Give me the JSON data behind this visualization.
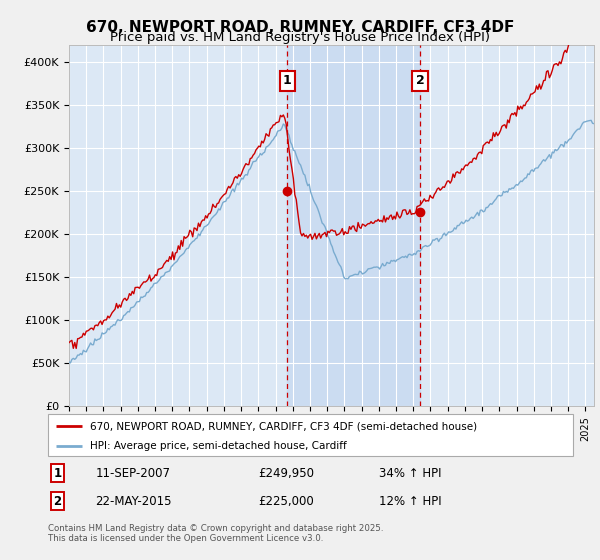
{
  "title": "670, NEWPORT ROAD, RUMNEY, CARDIFF, CF3 4DF",
  "subtitle": "Price paid vs. HM Land Registry's House Price Index (HPI)",
  "ylim": [
    0,
    420000
  ],
  "yticks": [
    0,
    50000,
    100000,
    150000,
    200000,
    250000,
    300000,
    350000,
    400000
  ],
  "ytick_labels": [
    "£0",
    "£50K",
    "£100K",
    "£150K",
    "£200K",
    "£250K",
    "£300K",
    "£350K",
    "£400K"
  ],
  "xlim_start": 1995.0,
  "xlim_end": 2025.5,
  "sale1_date": 2007.69,
  "sale1_price": 249950,
  "sale1_label": "1",
  "sale1_text": "11-SEP-2007",
  "sale1_hpi_pct": "34% ↑ HPI",
  "sale2_date": 2015.39,
  "sale2_price": 225000,
  "sale2_label": "2",
  "sale2_text": "22-MAY-2015",
  "sale2_hpi_pct": "12% ↑ HPI",
  "line_color_red": "#cc0000",
  "line_color_blue": "#7aabcf",
  "background_plot": "#dce8f5",
  "background_fig": "#f0f0f0",
  "grid_color": "#ffffff",
  "vline_color": "#cc0000",
  "shade_color": "#c5d8f0",
  "title_fontsize": 11,
  "subtitle_fontsize": 9.5,
  "legend_label_red": "670, NEWPORT ROAD, RUMNEY, CARDIFF, CF3 4DF (semi-detached house)",
  "legend_label_blue": "HPI: Average price, semi-detached house, Cardiff",
  "footer": "Contains HM Land Registry data © Crown copyright and database right 2025.\nThis data is licensed under the Open Government Licence v3.0."
}
